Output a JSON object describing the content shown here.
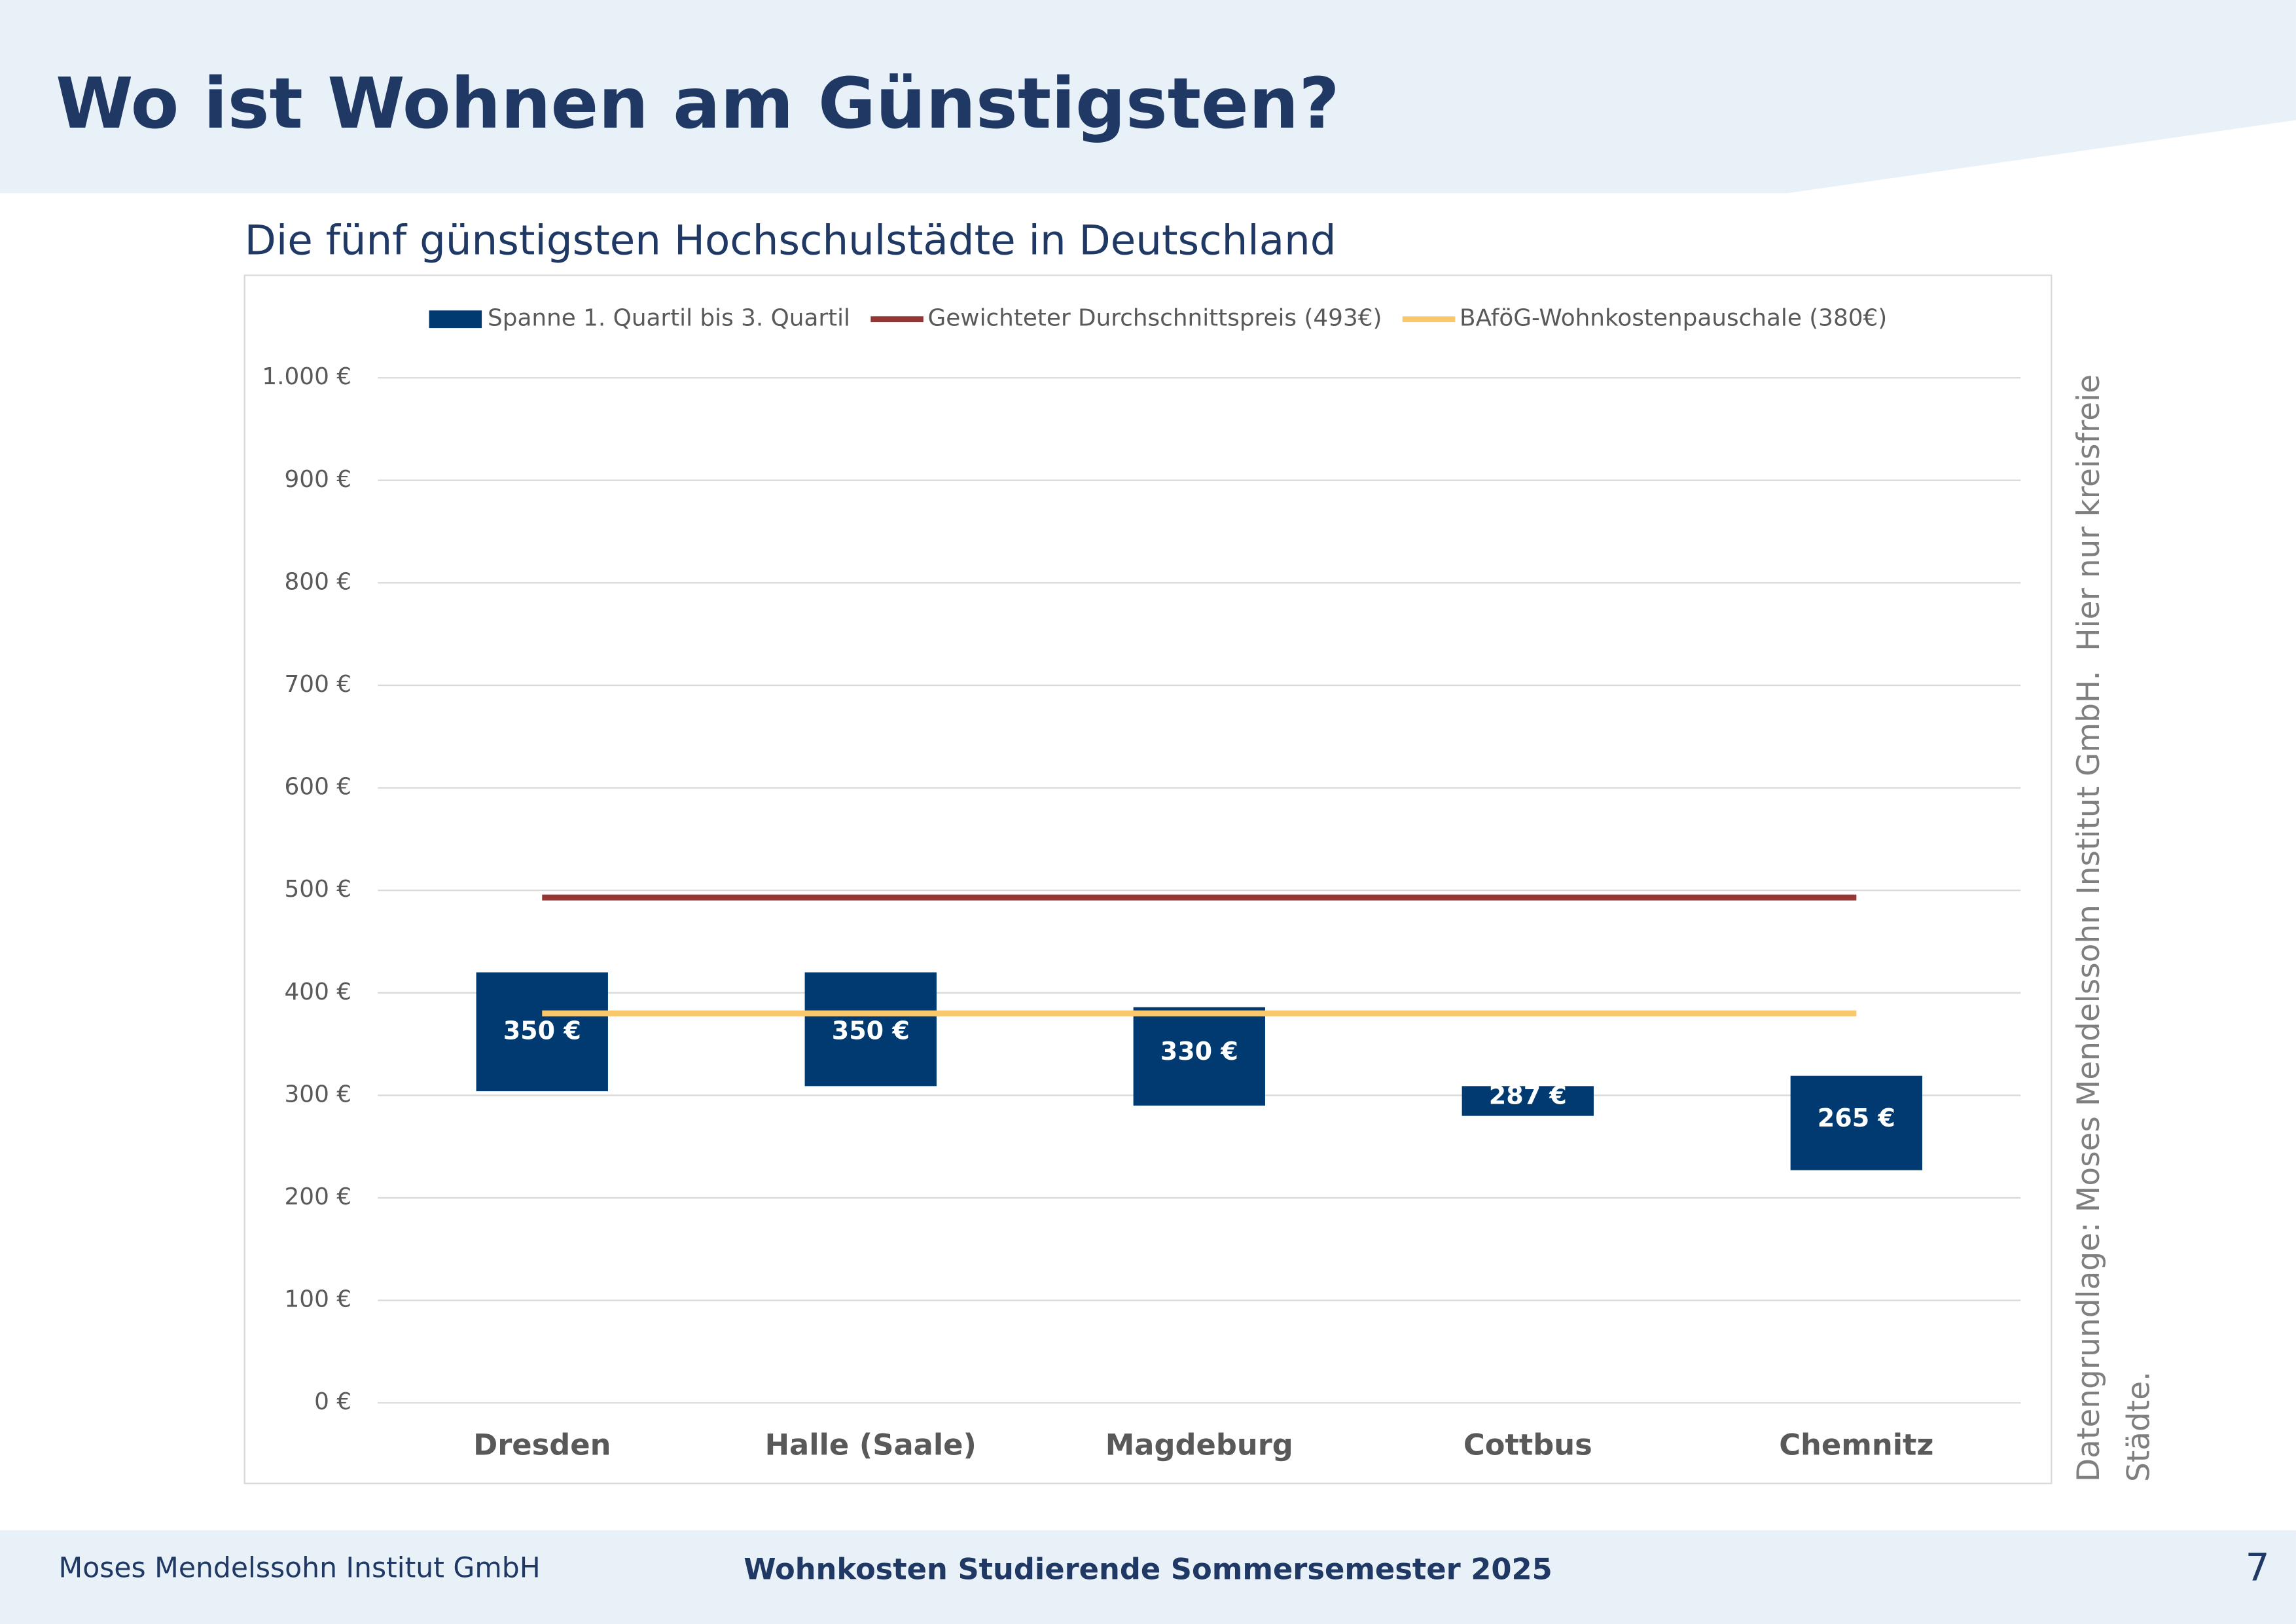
{
  "header": {
    "title": "Wo ist Wohnen am Günstigsten?"
  },
  "chart_data": {
    "type": "floating_bar",
    "title": "Die fünf günstigsten Hochschulstädte in Deutschland",
    "categories": [
      "Dresden",
      "Halle (Saale)",
      "Magdeburg",
      "Cottbus",
      "Chemnitz"
    ],
    "series": [
      {
        "name": "Spanne 1. Quartil bis 3. Quartil",
        "color": "#003a70",
        "q1": [
          304,
          309,
          290,
          280,
          227
        ],
        "q3": [
          420,
          420,
          386,
          309,
          319
        ],
        "values": [
          350,
          350,
          330,
          287,
          265
        ],
        "value_labels": [
          "350 €",
          "350 €",
          "330 €",
          "287 €",
          "265 €"
        ]
      }
    ],
    "lines": [
      {
        "name": "Gewichteter Durchschnittspreis (493€)",
        "color": "#943634",
        "value": 493
      },
      {
        "name": "BAföG-Wohnkostenpauschale (380€)",
        "color": "#f9c86a",
        "value": 380
      }
    ],
    "ylim": [
      0,
      1000
    ],
    "yticks": [
      {
        "value": 0,
        "label": "0 €"
      },
      {
        "value": 100,
        "label": "100 €"
      },
      {
        "value": 200,
        "label": "200 €"
      },
      {
        "value": 300,
        "label": "300 €"
      },
      {
        "value": 400,
        "label": "400 €"
      },
      {
        "value": 500,
        "label": "500 €"
      },
      {
        "value": 600,
        "label": "600 €"
      },
      {
        "value": 700,
        "label": "700 €"
      },
      {
        "value": 800,
        "label": "800 €"
      },
      {
        "value": 900,
        "label": "900 €"
      },
      {
        "value": 1000,
        "label": "1.000 €"
      }
    ],
    "grid": true,
    "legend": "top"
  },
  "note": [
    "Datengrundlage: Moses Mendelssohn Institut GmbH.  Hier nur kreisfreie",
    "Städte."
  ],
  "footer": {
    "left": "Moses Mendelssohn Institut GmbH",
    "center": "Wohnkosten Studierende Sommersemester 2025",
    "page": "7"
  }
}
